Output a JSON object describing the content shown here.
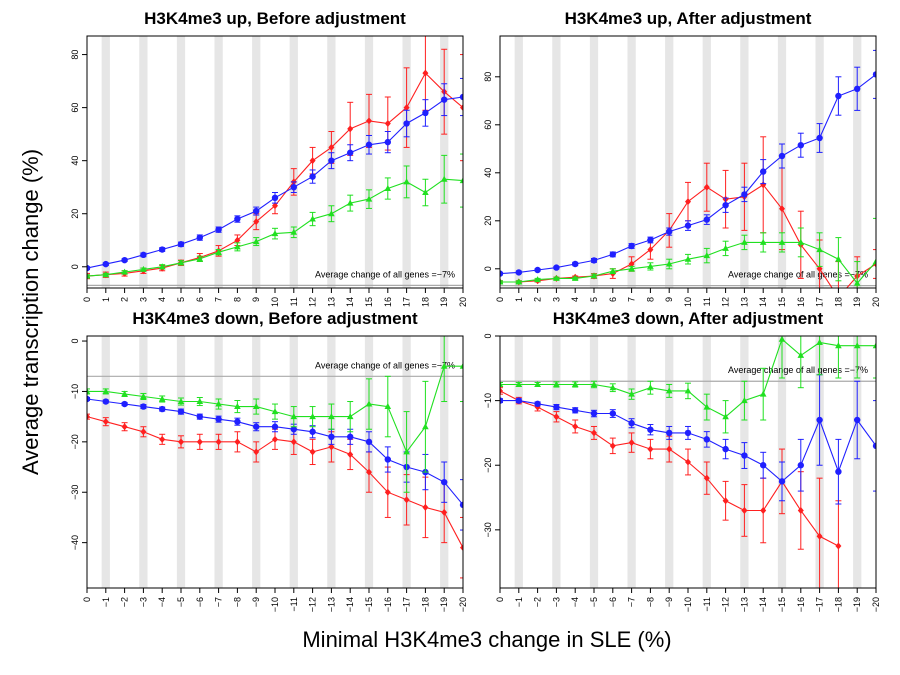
{
  "ylabel": "Average transcription change (%)",
  "xlabel": "Minimal H3K4me3 change in SLE (%)",
  "colors": {
    "red": "#ff2020",
    "blue": "#2020ff",
    "green": "#20e020",
    "band": "#e6e6e6",
    "refline": "#aaaaaa"
  },
  "chart_data": [
    {
      "type": "line",
      "title": "H3K4me3 up, Before adjustment",
      "x_ticks": [
        "0",
        "1",
        "2",
        "3",
        "4",
        "5",
        "6",
        "7",
        "8",
        "9",
        "10",
        "11",
        "12",
        "13",
        "14",
        "15",
        "16",
        "17",
        "18",
        "19",
        "20"
      ],
      "ylim": [
        -8,
        87
      ],
      "y_ticks": [
        0,
        20,
        40,
        60,
        80
      ],
      "y_tick_labels": [
        "0",
        "20",
        "40",
        "60",
        "80"
      ],
      "reference_line": -7,
      "annotation": "Average change of all genes =−7%",
      "series": [
        {
          "color": "red",
          "values": [
            -3.5,
            -3,
            -2.5,
            -1.5,
            -0.5,
            1.5,
            3.5,
            6,
            10,
            17,
            23,
            32,
            40,
            45,
            52,
            55,
            54,
            60,
            73,
            66,
            60
          ],
          "errors": [
            1,
            1,
            1,
            1,
            1,
            1,
            1.5,
            2,
            2,
            3,
            3,
            5,
            5,
            6,
            10,
            10,
            10,
            15,
            14,
            16,
            20
          ]
        },
        {
          "color": "blue",
          "values": [
            -0.5,
            1,
            2.5,
            4.5,
            6.5,
            8.5,
            11,
            14,
            18,
            21,
            26,
            30,
            34,
            40,
            43,
            46,
            47,
            54,
            58,
            63,
            64
          ],
          "errors": [
            0.5,
            0.5,
            0.5,
            0.7,
            0.7,
            0.8,
            1,
            1,
            1.2,
            1.5,
            2,
            2,
            2.5,
            3,
            3,
            3.5,
            4,
            5,
            5,
            6,
            7
          ]
        },
        {
          "color": "green",
          "values": [
            -3.5,
            -3,
            -2,
            -1,
            0,
            1.5,
            3,
            5.5,
            7.5,
            9.5,
            12.5,
            13,
            18,
            20,
            24,
            25.5,
            29.5,
            32,
            28,
            33,
            32.5
          ],
          "errors": [
            0.5,
            0.5,
            0.5,
            0.5,
            0.8,
            0.8,
            1,
            1,
            1.5,
            1.5,
            2,
            2,
            2.5,
            3,
            3,
            3.5,
            4,
            6,
            5,
            9,
            10
          ]
        }
      ]
    },
    {
      "type": "line",
      "title": "H3K4me3 up, After adjustment",
      "x_ticks": [
        "0",
        "1",
        "2",
        "3",
        "4",
        "5",
        "6",
        "7",
        "8",
        "9",
        "10",
        "11",
        "12",
        "13",
        "14",
        "15",
        "16",
        "17",
        "18",
        "19",
        "20"
      ],
      "ylim": [
        -8,
        97
      ],
      "y_ticks": [
        0,
        20,
        40,
        60,
        80
      ],
      "y_tick_labels": [
        "0",
        "20",
        "40",
        "60",
        "80"
      ],
      "reference_line": -7,
      "annotation": "Average change of all genes =−7%",
      "series": [
        {
          "color": "red",
          "values": [
            -5.5,
            -5.5,
            -5,
            -4,
            -3.5,
            -3,
            -2,
            2,
            8,
            16,
            28,
            34,
            29,
            30,
            35,
            25,
            10,
            0,
            -12,
            -3,
            2
          ],
          "errors": [
            0.5,
            0.5,
            0.5,
            0.5,
            0.5,
            1,
            2,
            3,
            4,
            7,
            8,
            10,
            12,
            14,
            20,
            17,
            14,
            12,
            15,
            8,
            6
          ]
        },
        {
          "color": "blue",
          "values": [
            -2,
            -1.5,
            -0.5,
            0.5,
            2,
            3.5,
            6,
            9.5,
            12,
            15.5,
            18,
            20.5,
            26.5,
            31,
            40.5,
            47,
            51.5,
            54.5,
            72,
            75,
            81
          ],
          "errors": [
            0.5,
            0.5,
            0.5,
            0.5,
            0.7,
            0.8,
            1,
            1,
            1.2,
            1.5,
            2,
            2,
            3,
            3,
            5,
            5,
            5,
            6,
            8,
            9,
            10
          ]
        },
        {
          "color": "green",
          "values": [
            -5.5,
            -5.5,
            -4.5,
            -4,
            -4,
            -3,
            -1,
            0,
            1,
            2,
            4,
            5.5,
            8.5,
            11,
            11,
            11,
            11,
            8,
            4,
            -6,
            3
          ],
          "errors": [
            0.5,
            0.5,
            0.5,
            0.5,
            0.5,
            0.8,
            1,
            1,
            1.5,
            2,
            2,
            3,
            3,
            3,
            4,
            4,
            6,
            7,
            9,
            9,
            18
          ]
        }
      ]
    },
    {
      "type": "line",
      "title": "H3K4me3 down, Before adjustment",
      "x_ticks": [
        "0",
        "−1",
        "−2",
        "−3",
        "−4",
        "−5",
        "−6",
        "−7",
        "−8",
        "−9",
        "−10",
        "−11",
        "−12",
        "−13",
        "−14",
        "−15",
        "−16",
        "−17",
        "−18",
        "−19",
        "−20"
      ],
      "ylim": [
        -49,
        1
      ],
      "y_ticks": [
        -40,
        -30,
        -20,
        -10,
        0
      ],
      "y_tick_labels": [
        "−40",
        "−30",
        "−20",
        "−10",
        "0"
      ],
      "reference_line": -7,
      "annotation": "Average change of all genes =−7%",
      "series": [
        {
          "color": "red",
          "values": [
            -15,
            -16,
            -17,
            -18,
            -19.5,
            -20,
            -20,
            -20,
            -20,
            -22,
            -19.5,
            -20,
            -22,
            -21,
            -22.5,
            -26,
            -30,
            -31.5,
            -33,
            -34,
            -41
          ],
          "errors": [
            0.5,
            0.8,
            0.8,
            1,
            1,
            1.2,
            1.5,
            1.5,
            2,
            2,
            2,
            2.5,
            2.5,
            3,
            3,
            4,
            5,
            5,
            6,
            6,
            6
          ]
        },
        {
          "color": "blue",
          "values": [
            -11.5,
            -12,
            -12.5,
            -13,
            -13.5,
            -14,
            -15,
            -15.5,
            -16,
            -17,
            -17,
            -17.5,
            -18,
            -19,
            -19,
            -20,
            -23.5,
            -25,
            -26,
            -28,
            -32.5
          ],
          "errors": [
            0.3,
            0.3,
            0.3,
            0.4,
            0.4,
            0.5,
            0.5,
            0.6,
            0.7,
            0.8,
            1,
            1,
            1.2,
            1.5,
            1.5,
            2,
            2.5,
            3,
            3.5,
            4,
            5
          ]
        },
        {
          "color": "green",
          "values": [
            -10,
            -10,
            -10.5,
            -11,
            -11.5,
            -12,
            -12,
            -12.5,
            -13,
            -13,
            -14,
            -15,
            -15,
            -15,
            -15,
            -12.5,
            -13,
            -22,
            -17,
            -5,
            -5
          ],
          "errors": [
            0.5,
            0.5,
            0.5,
            0.6,
            0.6,
            0.7,
            0.8,
            1,
            1.2,
            1.5,
            1.5,
            2,
            2,
            2.5,
            3,
            5,
            6,
            8,
            9,
            7,
            7
          ]
        }
      ]
    },
    {
      "type": "line",
      "title": "H3K4me3 down, After adjustment",
      "x_ticks": [
        "0",
        "−1",
        "−2",
        "−3",
        "−4",
        "−5",
        "−6",
        "−7",
        "−8",
        "−9",
        "−10",
        "−11",
        "−12",
        "−13",
        "−14",
        "−15",
        "−16",
        "−17",
        "−18",
        "−19",
        "−20"
      ],
      "ylim": [
        -39,
        0
      ],
      "y_ticks": [
        -30,
        -20,
        -10,
        0
      ],
      "y_tick_labels": [
        "−30",
        "−20",
        "−10",
        "0"
      ],
      "reference_line": -7,
      "annotation": "Average change of all genes =−7%",
      "series": [
        {
          "color": "red",
          "values": [
            -8.5,
            -10,
            -11,
            -12.5,
            -14,
            -15,
            -17,
            -16.5,
            -17.5,
            -17.5,
            -19.5,
            -22,
            -25.5,
            -27,
            -27,
            -22.5,
            -27,
            -31,
            -32.5
          ],
          "errors": [
            0.5,
            0.5,
            0.6,
            0.8,
            1,
            1,
            1.2,
            1.5,
            1.5,
            2,
            2,
            2.5,
            3,
            4,
            5,
            5,
            6,
            9,
            7
          ]
        },
        {
          "color": "blue",
          "values": [
            -10,
            -10,
            -10.5,
            -11,
            -11.5,
            -12,
            -12,
            -13.5,
            -14.5,
            -15,
            -15,
            -16,
            -17.5,
            -18.5,
            -20,
            -22.5,
            -20,
            -13,
            -21,
            -13,
            -17
          ],
          "errors": [
            0.3,
            0.3,
            0.3,
            0.4,
            0.4,
            0.5,
            0.6,
            0.7,
            0.8,
            1,
            1,
            1.2,
            1.5,
            2,
            2,
            3,
            4,
            7,
            5,
            6,
            7
          ]
        },
        {
          "color": "green",
          "values": [
            -7.5,
            -7.5,
            -7.5,
            -7.5,
            -7.5,
            -7.5,
            -8,
            -9,
            -8,
            -8.5,
            -8.5,
            -11,
            -12.5,
            -10,
            -9,
            -0.5,
            -3,
            -1,
            -1.5,
            -1.5,
            -1.5
          ],
          "errors": [
            0.3,
            0.3,
            0.3,
            0.4,
            0.4,
            0.5,
            0.6,
            0.8,
            1,
            1,
            1.2,
            2,
            2.5,
            3,
            4,
            6,
            5,
            5,
            5,
            5,
            5
          ]
        }
      ]
    }
  ]
}
